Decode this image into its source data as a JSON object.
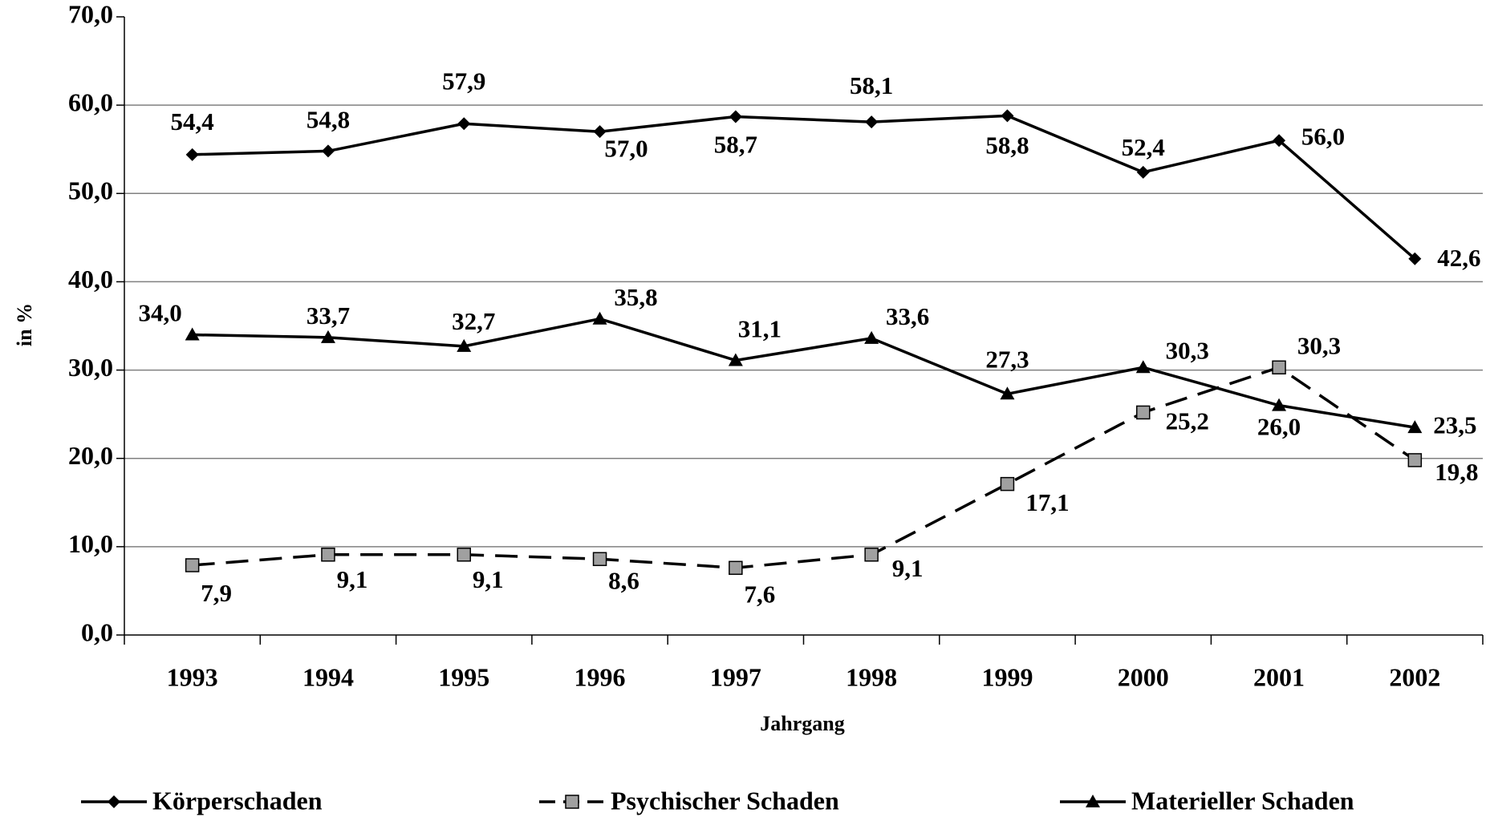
{
  "chart_data": {
    "type": "line",
    "x_label": "Jahrgang",
    "y_label": "in %",
    "categories": [
      "1993",
      "1994",
      "1995",
      "1996",
      "1997",
      "1998",
      "1999",
      "2000",
      "2001",
      "2002"
    ],
    "series": [
      {
        "name": "Körperschaden",
        "color": "#000000",
        "marker": "diamond",
        "dashed": false,
        "values": [
          54.4,
          54.8,
          57.9,
          57.0,
          58.7,
          58.1,
          58.8,
          52.4,
          56.0,
          42.6
        ],
        "value_labels": [
          "54,4",
          "54,8",
          "57,9",
          "57,0",
          "58,7",
          "58,1",
          "58,8",
          "52,4",
          "56,0",
          "42,6"
        ]
      },
      {
        "name": "Psychischer Schaden",
        "color": "#000000",
        "marker_fill": "#a0a0a0",
        "marker": "square",
        "dashed": true,
        "values": [
          7.9,
          9.1,
          9.1,
          8.6,
          7.6,
          9.1,
          17.1,
          25.2,
          30.3,
          19.8
        ],
        "value_labels": [
          "7,9",
          "9,1",
          "9,1",
          "8,6",
          "7,6",
          "9,1",
          "17,1",
          "25,2",
          "30,3",
          "19,8"
        ]
      },
      {
        "name": "Materieller Schaden",
        "color": "#000000",
        "marker": "triangle",
        "dashed": false,
        "values": [
          34.0,
          33.7,
          32.7,
          35.8,
          31.1,
          33.6,
          27.3,
          30.3,
          26.0,
          23.5
        ],
        "value_labels": [
          "34,0",
          "33,7",
          "32,7",
          "35,8",
          "31,1",
          "33,6",
          "27,3",
          "30,3",
          "26,0",
          "23,5"
        ]
      }
    ],
    "ylim": [
      0,
      70
    ],
    "yticks": [
      {
        "value": 0,
        "label": "0,0"
      },
      {
        "value": 10,
        "label": "10,0"
      },
      {
        "value": 20,
        "label": "20,0"
      },
      {
        "value": 30,
        "label": "30,0"
      },
      {
        "value": 40,
        "label": "40,0"
      },
      {
        "value": 50,
        "label": "50,0"
      },
      {
        "value": 60,
        "label": "60,0"
      },
      {
        "value": 70,
        "label": "70,0"
      }
    ],
    "grid": true,
    "legend": "bottom"
  }
}
